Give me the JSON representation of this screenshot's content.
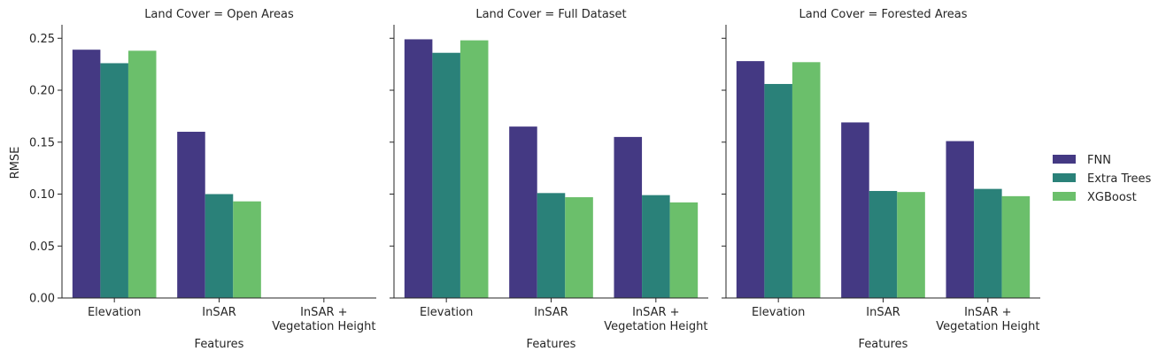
{
  "chart_data": {
    "type": "bar",
    "ylabel": "RMSE",
    "xlabel": "Features",
    "ylim": [
      0,
      0.263
    ],
    "yticks": [
      "0.00",
      "0.05",
      "0.10",
      "0.15",
      "0.20",
      "0.25"
    ],
    "categories": [
      [
        "Elevation"
      ],
      [
        "InSAR"
      ],
      [
        "InSAR +",
        "Vegetation Height"
      ]
    ],
    "legend": {
      "placement": "right"
    },
    "series_names": [
      "FNN",
      "Extra Trees",
      "XGBoost"
    ],
    "colors": [
      "#443983",
      "#2a8179",
      "#6bbf6b"
    ],
    "facets": [
      {
        "title": "Land Cover = Open Areas",
        "series": [
          {
            "name": "FNN",
            "values": [
              0.239,
              0.16,
              null
            ]
          },
          {
            "name": "Extra Trees",
            "values": [
              0.226,
              0.1,
              null
            ]
          },
          {
            "name": "XGBoost",
            "values": [
              0.238,
              0.093,
              null
            ]
          }
        ]
      },
      {
        "title": "Land Cover = Full Dataset",
        "series": [
          {
            "name": "FNN",
            "values": [
              0.249,
              0.165,
              0.155
            ]
          },
          {
            "name": "Extra Trees",
            "values": [
              0.236,
              0.101,
              0.099
            ]
          },
          {
            "name": "XGBoost",
            "values": [
              0.248,
              0.097,
              0.092
            ]
          }
        ]
      },
      {
        "title": "Land Cover = Forested Areas",
        "series": [
          {
            "name": "FNN",
            "values": [
              0.228,
              0.169,
              0.151
            ]
          },
          {
            "name": "Extra Trees",
            "values": [
              0.206,
              0.103,
              0.105
            ]
          },
          {
            "name": "XGBoost",
            "values": [
              0.227,
              0.102,
              0.098
            ]
          }
        ]
      }
    ]
  }
}
